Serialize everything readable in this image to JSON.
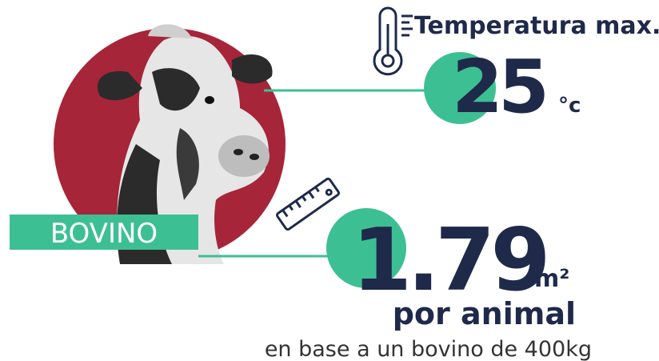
{
  "temperature": {
    "label": "Temperatura max.",
    "value": "25",
    "unit": "°c"
  },
  "animal": {
    "label": "BOVINO"
  },
  "space": {
    "value": "1.79",
    "unit": "m²",
    "per": "por animal",
    "note": "en base a un bovino de 400kg"
  }
}
